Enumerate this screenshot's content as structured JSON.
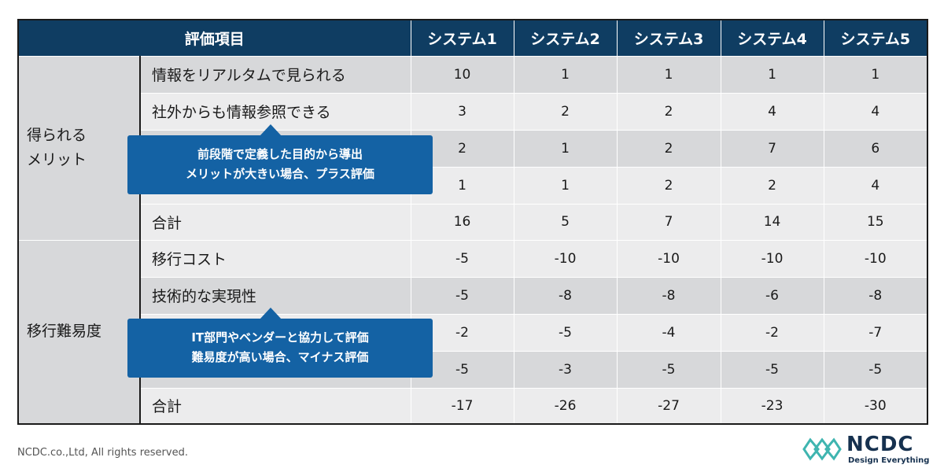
{
  "table": {
    "header": {
      "item_label": "評価項目",
      "systems": [
        "システム1",
        "システム2",
        "システム3",
        "システム4",
        "システム5"
      ]
    },
    "groups": [
      {
        "label": "得られる\nメリット",
        "rows": [
          {
            "item": "情報をリアルタムで見られる",
            "values": [
              "10",
              "1",
              "1",
              "1",
              "1"
            ]
          },
          {
            "item": "社外からも情報参照できる",
            "values": [
              "3",
              "2",
              "2",
              "4",
              "4"
            ]
          },
          {
            "item": "",
            "values": [
              "2",
              "1",
              "2",
              "7",
              "6"
            ]
          },
          {
            "item": "",
            "values": [
              "1",
              "1",
              "2",
              "2",
              "4"
            ]
          }
        ],
        "total": {
          "item": "合計",
          "values": [
            "16",
            "5",
            "7",
            "14",
            "15"
          ]
        }
      },
      {
        "label": "移行難易度",
        "rows": [
          {
            "item": "移行コスト",
            "values": [
              "-5",
              "-10",
              "-10",
              "-10",
              "-10"
            ]
          },
          {
            "item": "技術的な実現性",
            "values": [
              "-5",
              "-8",
              "-8",
              "-6",
              "-8"
            ]
          },
          {
            "item": "",
            "values": [
              "-2",
              "-5",
              "-4",
              "-2",
              "-7"
            ]
          },
          {
            "item": "",
            "values": [
              "-5",
              "-3",
              "-5",
              "-5",
              "-5"
            ]
          }
        ],
        "total": {
          "item": "合計",
          "values": [
            "-17",
            "-26",
            "-27",
            "-23",
            "-30"
          ]
        }
      }
    ]
  },
  "callouts": {
    "merit": {
      "line1": "前段階で定義した目的から導出",
      "line2": "メリットが大きい場合、プラス評価"
    },
    "difficulty": {
      "line1": "IT部門やベンダーと協力して評価",
      "line2": "難易度が高い場合、マイナス評価"
    }
  },
  "footer": {
    "copyright": "NCDC.co.,Ltd, All rights reserved.",
    "brand_name": "NCDC",
    "brand_tagline": "Design Everything",
    "logo_icon": "ncdc-logo-icon"
  },
  "colors": {
    "header_bg": "#0f3d62",
    "callout_bg": "#1462a4",
    "row_dark": "#d7d8da",
    "row_light": "#ececed",
    "logo_accent": "#3fb5b0"
  }
}
